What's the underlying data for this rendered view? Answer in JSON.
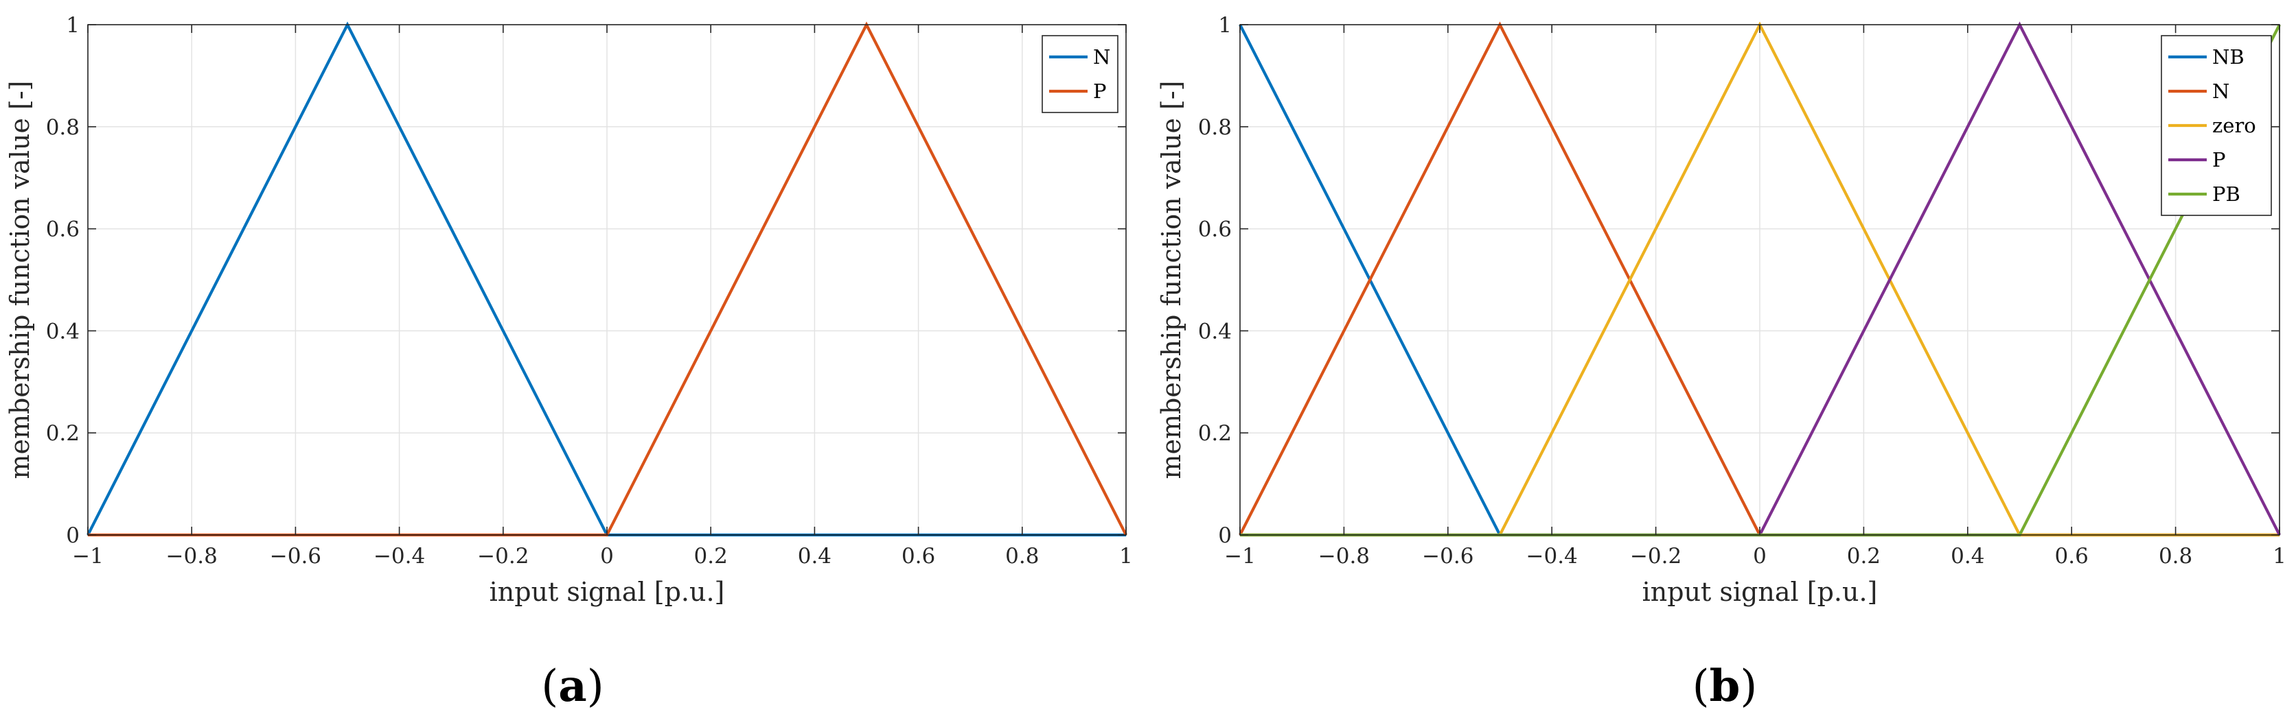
{
  "chart_data": [
    {
      "type": "line",
      "panel": "(a)",
      "caption_letter": "a",
      "xlabel": "input signal [p.u.]",
      "ylabel": "membership function value [-]",
      "xlim": [
        -1,
        1
      ],
      "ylim": [
        0,
        1
      ],
      "xticks": [
        -1,
        -0.8,
        -0.6,
        -0.4,
        -0.2,
        0,
        0.2,
        0.4,
        0.6,
        0.8,
        1
      ],
      "xtick_labels": [
        "−1",
        "−0.8",
        "−0.6",
        "−0.4",
        "−0.2",
        "0",
        "0.2",
        "0.4",
        "0.6",
        "0.8",
        "1"
      ],
      "yticks": [
        0,
        0.2,
        0.4,
        0.6,
        0.8,
        1
      ],
      "ytick_labels": [
        "0",
        "0.2",
        "0.4",
        "0.6",
        "0.8",
        "1"
      ],
      "grid": true,
      "legend_position": "top-right",
      "series": [
        {
          "name": "N",
          "color": "#0072BD",
          "x": [
            -1,
            -0.5,
            0,
            1
          ],
          "y": [
            0,
            1,
            0,
            0
          ]
        },
        {
          "name": "P",
          "color": "#D95319",
          "x": [
            -1,
            0,
            0.5,
            1
          ],
          "y": [
            0,
            0,
            1,
            0
          ]
        }
      ]
    },
    {
      "type": "line",
      "panel": "(b)",
      "caption_letter": "b",
      "xlabel": "input signal [p.u.]",
      "ylabel": "membership function value [-]",
      "xlim": [
        -1,
        1
      ],
      "ylim": [
        0,
        1
      ],
      "xticks": [
        -1,
        -0.8,
        -0.6,
        -0.4,
        -0.2,
        0,
        0.2,
        0.4,
        0.6,
        0.8,
        1
      ],
      "xtick_labels": [
        "−1",
        "−0.8",
        "−0.6",
        "−0.4",
        "−0.2",
        "0",
        "0.2",
        "0.4",
        "0.6",
        "0.8",
        "1"
      ],
      "yticks": [
        0,
        0.2,
        0.4,
        0.6,
        0.8,
        1
      ],
      "ytick_labels": [
        "0",
        "0.2",
        "0.4",
        "0.6",
        "0.8",
        "1"
      ],
      "grid": true,
      "legend_position": "top-right",
      "series": [
        {
          "name": "NB",
          "color": "#0072BD",
          "x": [
            -1,
            -0.5,
            1
          ],
          "y": [
            1,
            0,
            0
          ]
        },
        {
          "name": "N",
          "color": "#D95319",
          "x": [
            -1,
            -0.5,
            0,
            1
          ],
          "y": [
            0,
            1,
            0,
            0
          ]
        },
        {
          "name": "zero",
          "color": "#EDB120",
          "x": [
            -1,
            -0.5,
            0,
            0.5,
            1
          ],
          "y": [
            0,
            0,
            1,
            0,
            0
          ]
        },
        {
          "name": "P",
          "color": "#7E2F8E",
          "x": [
            -1,
            0,
            0.5,
            1
          ],
          "y": [
            0,
            0,
            1,
            0
          ]
        },
        {
          "name": "PB",
          "color": "#77AC30",
          "x": [
            -1,
            0.5,
            1
          ],
          "y": [
            0,
            0,
            1
          ]
        }
      ]
    }
  ]
}
